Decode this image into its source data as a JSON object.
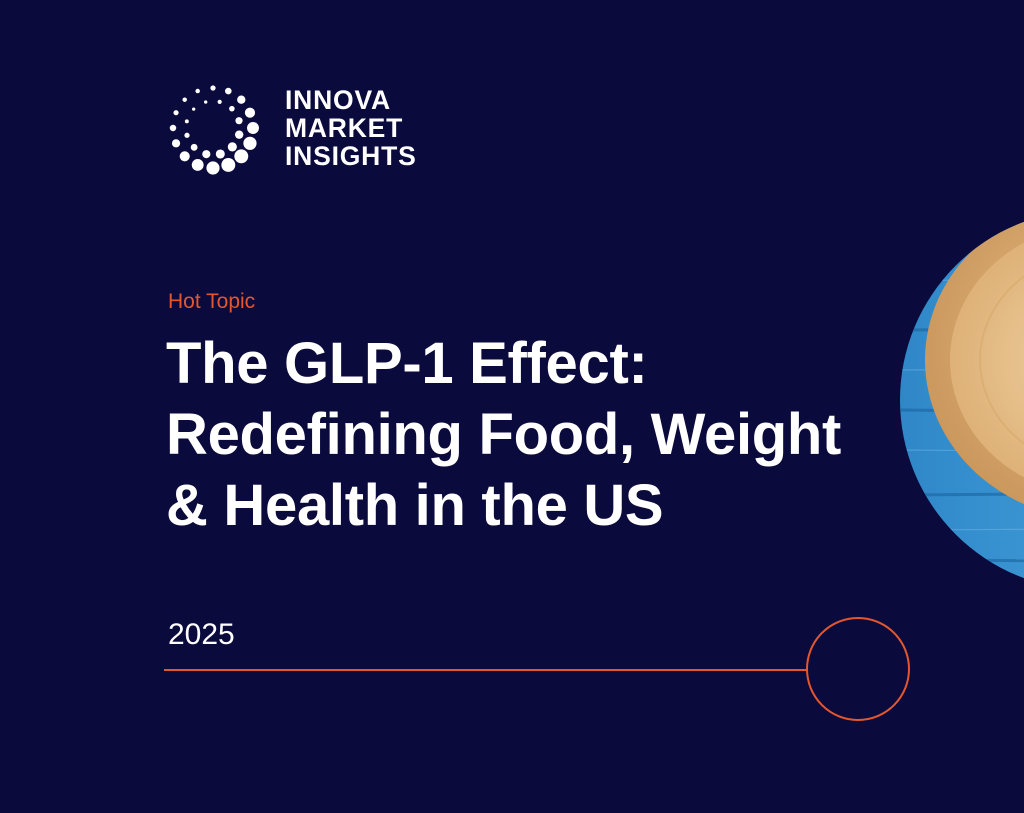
{
  "brand": {
    "lines": [
      "INNOVA",
      "MARKET",
      "INSIGHTS"
    ],
    "accent_color": "#e4572e",
    "background_color": "#0b0a3c"
  },
  "cover": {
    "eyebrow": "Hot Topic",
    "title_lines": [
      "The GLP-1 Effect:",
      "Redefining Food, Weight",
      "& Health in the US"
    ],
    "year": "2025"
  },
  "decor": {
    "photo_icon": "wooden-bowl-on-blue-wood-photo",
    "ring_icon": "orange-ring-icon"
  }
}
